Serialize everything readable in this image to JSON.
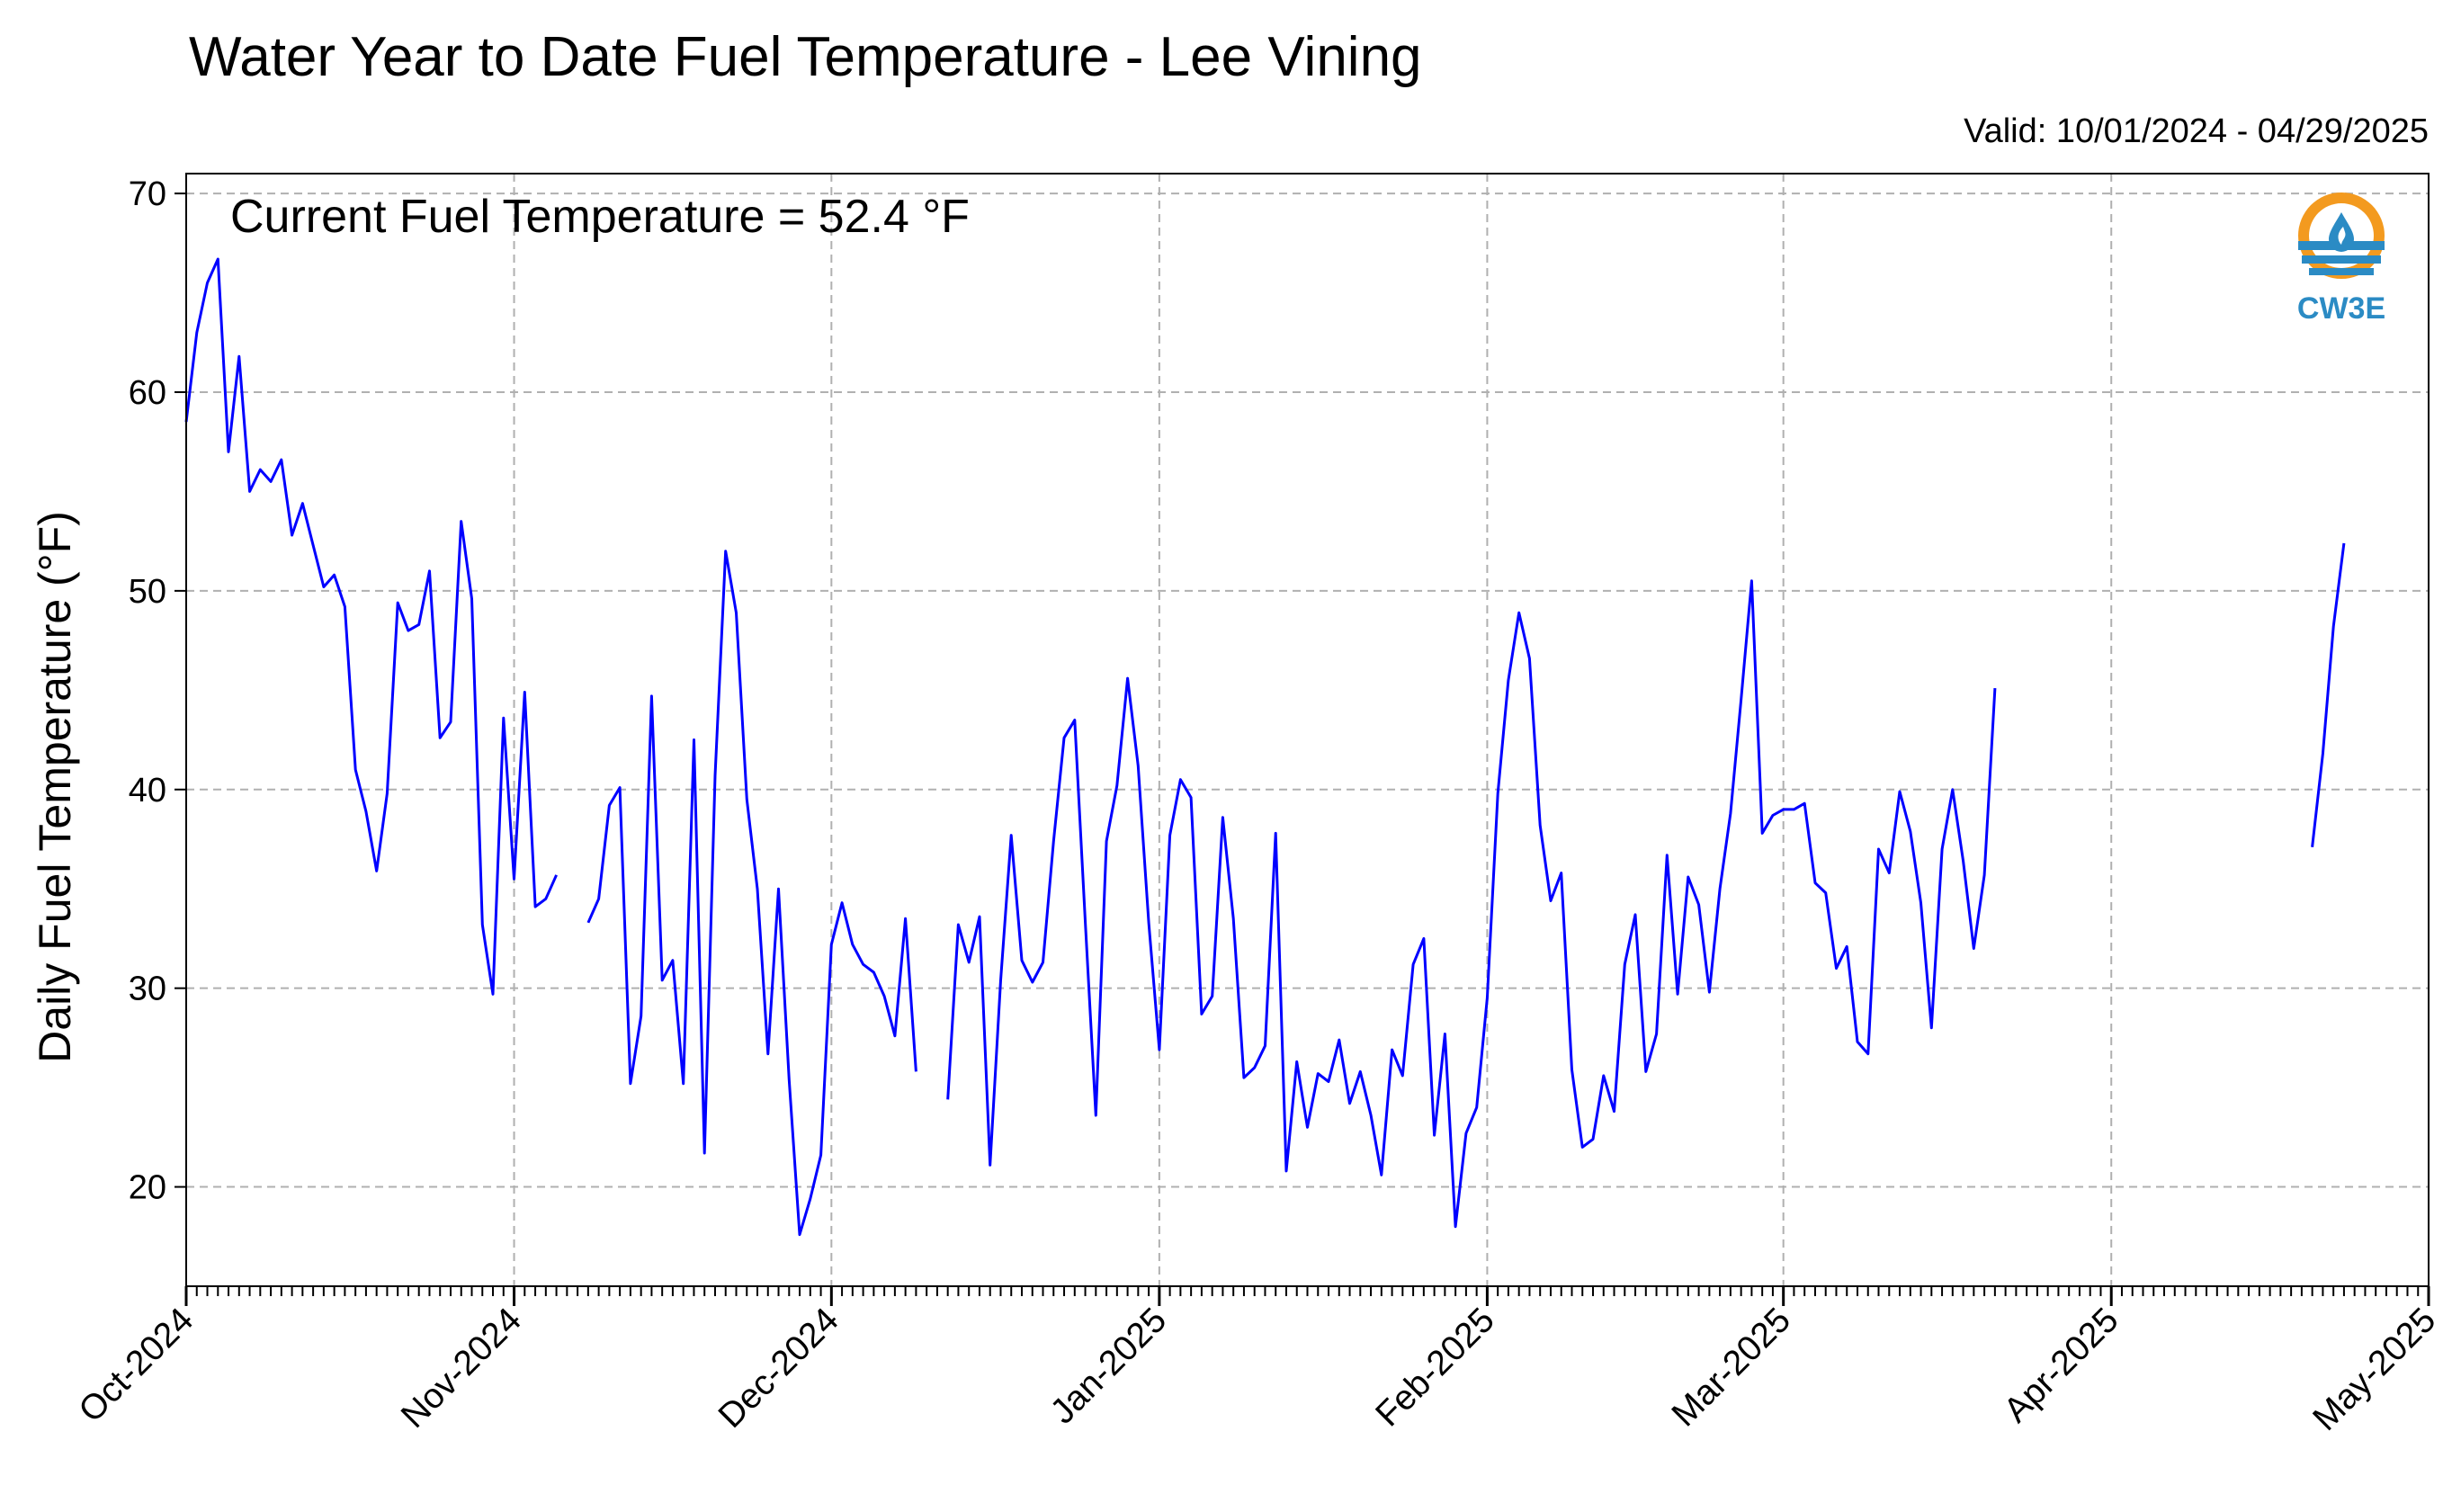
{
  "title": "Water Year to Date Fuel Temperature - Lee Vining",
  "valid_text": "Valid: 10/01/2024 - 04/29/2025",
  "annotation": "Current Fuel Temperature = 52.4 °F",
  "logo": {
    "text": "CW3E",
    "icon": "cw3e-logo-icon",
    "ring_color": "#F39A1F",
    "wave_color": "#2B8BC4",
    "text_color": "#2B8BC4"
  },
  "colors": {
    "line": "#0000ff",
    "grid": "#b0b0b0"
  },
  "chart_data": {
    "type": "line",
    "title": "Water Year to Date Fuel Temperature - Lee Vining",
    "ylabel": "Daily Fuel Temperature (°F)",
    "xlabel": "",
    "x_start": "2024-10-01",
    "xlim": [
      "2024-10-01",
      "2025-05-01"
    ],
    "ylim": [
      15,
      71
    ],
    "yticks": [
      20,
      30,
      40,
      50,
      60,
      70
    ],
    "xticks": [
      {
        "date": "2024-10-01",
        "label": "Oct-2024"
      },
      {
        "date": "2024-11-01",
        "label": "Nov-2024"
      },
      {
        "date": "2024-12-01",
        "label": "Dec-2024"
      },
      {
        "date": "2025-01-01",
        "label": "Jan-2025"
      },
      {
        "date": "2025-02-01",
        "label": "Feb-2025"
      },
      {
        "date": "2025-03-01",
        "label": "Mar-2025"
      },
      {
        "date": "2025-04-01",
        "label": "Apr-2025"
      },
      {
        "date": "2025-05-01",
        "label": "May-2025"
      }
    ],
    "grid": true,
    "series": [
      {
        "values": [
          58.5,
          63.0,
          65.5,
          66.7,
          57.0,
          61.8,
          55.0,
          56.1,
          55.5,
          56.6,
          52.8,
          54.4,
          52.3,
          50.2,
          50.8,
          49.2,
          41.0,
          38.9,
          35.9,
          39.8,
          49.4,
          48.0,
          48.3,
          51.0,
          42.6,
          43.4,
          53.5,
          49.6,
          33.2,
          29.7,
          43.6,
          35.5,
          44.9,
          34.1,
          34.5,
          35.7,
          null,
          null,
          33.3,
          34.5,
          39.2,
          40.1,
          25.2,
          28.6,
          44.7,
          30.4,
          31.4,
          25.2,
          42.5,
          21.7,
          40.7,
          52.0,
          48.9,
          39.5,
          35.0,
          26.7,
          35.0,
          25.4,
          17.6,
          19.4,
          21.6,
          32.2,
          34.3,
          32.2,
          31.2,
          30.8,
          29.6,
          27.6,
          33.5,
          25.8,
          null,
          null,
          24.4,
          33.2,
          31.3,
          33.6,
          21.1,
          30.4,
          37.7,
          31.4,
          30.3,
          31.3,
          37.4,
          42.6,
          43.5,
          33.3,
          23.6,
          37.4,
          40.2,
          45.6,
          41.2,
          33.3,
          26.9,
          37.7,
          40.5,
          39.6,
          28.7,
          29.6,
          38.6,
          33.5,
          25.5,
          26.0,
          27.1,
          37.8,
          20.8,
          26.3,
          23.0,
          25.7,
          25.3,
          27.4,
          24.2,
          25.8,
          23.6,
          20.6,
          26.9,
          25.6,
          31.2,
          32.5,
          22.6,
          27.7,
          18.0,
          22.7,
          24.0,
          29.5,
          39.8,
          45.5,
          48.9,
          46.6,
          38.2,
          34.4,
          35.8,
          25.9,
          22.0,
          22.4,
          25.6,
          23.8,
          31.2,
          33.7,
          25.8,
          27.7,
          36.7,
          29.7,
          35.6,
          34.2,
          29.8,
          35.0,
          38.8,
          44.5,
          50.5,
          37.8,
          38.7,
          39.0,
          39.0,
          39.3,
          35.3,
          34.8,
          31.0,
          32.1,
          27.3,
          26.7,
          37.0,
          35.8,
          39.9,
          37.9,
          34.3,
          28.0,
          37.0,
          40.0,
          36.4,
          32.0,
          35.7,
          45.1,
          null,
          null,
          null,
          null,
          null,
          null,
          null,
          null,
          null,
          null,
          null,
          null,
          null,
          null,
          null,
          null,
          null,
          null,
          null,
          null,
          null,
          null,
          null,
          null,
          null,
          null,
          null,
          null,
          null,
          37.1,
          41.8,
          48.2,
          52.4
        ]
      }
    ]
  }
}
